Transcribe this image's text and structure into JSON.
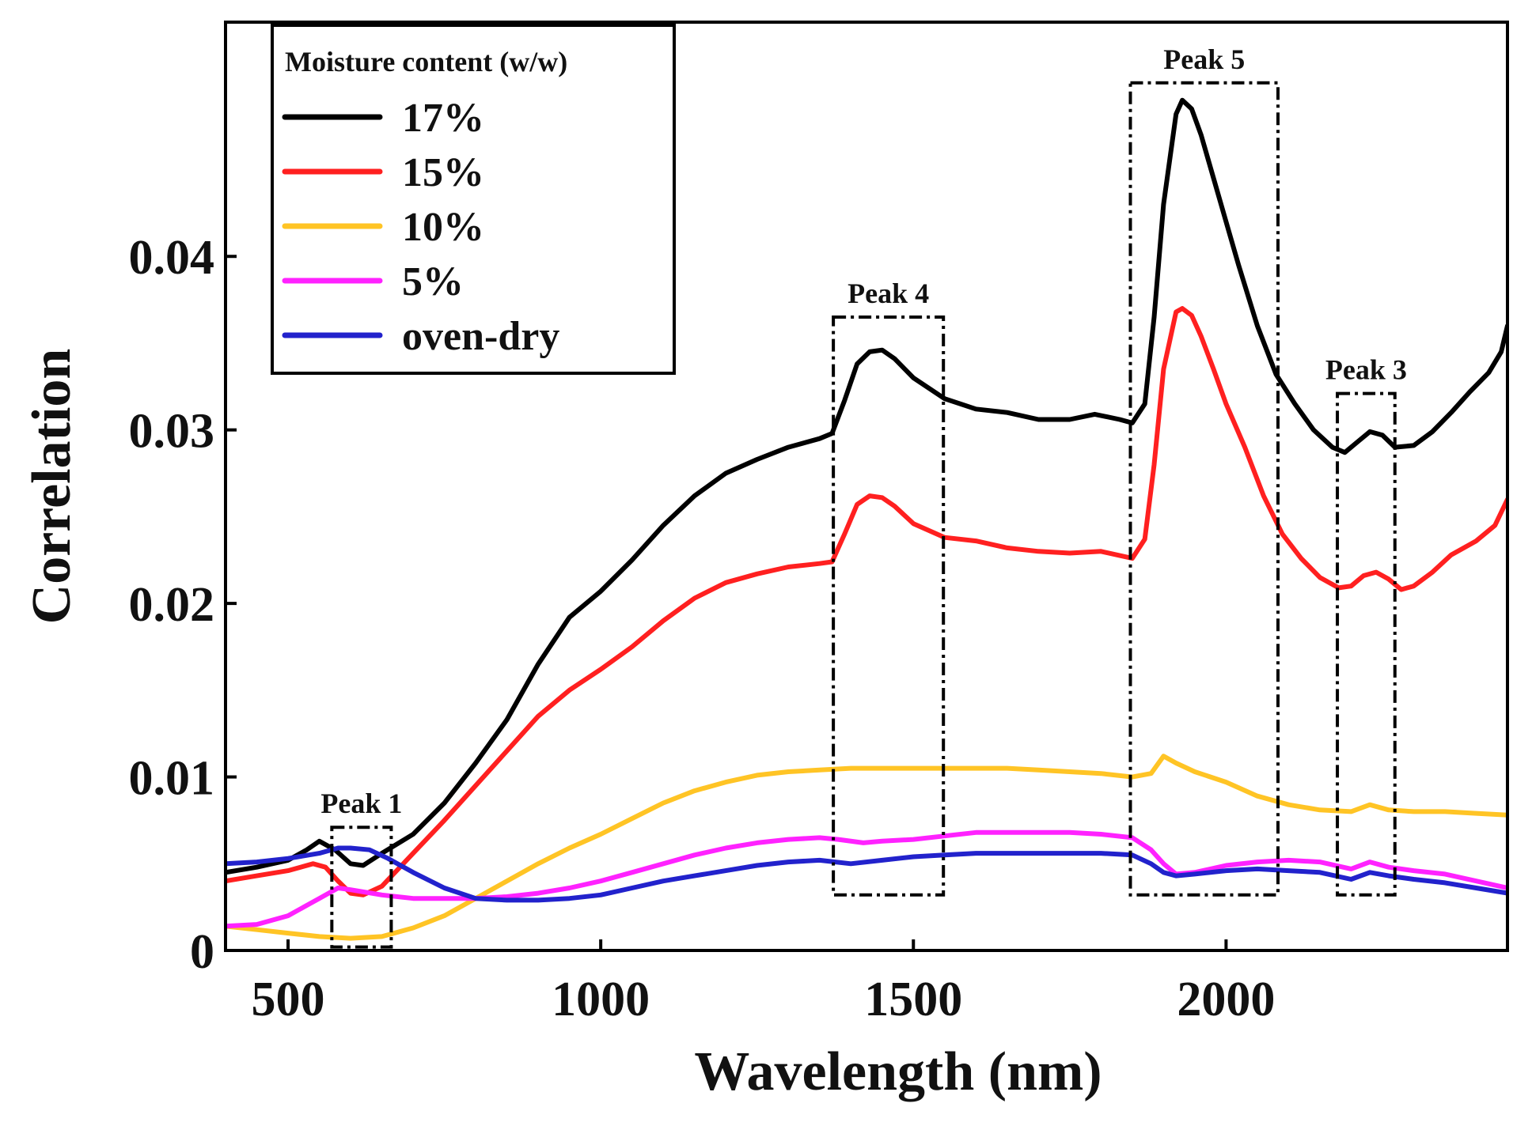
{
  "chart_data": {
    "type": "line",
    "title": "",
    "xlabel": "Wavelength (nm)",
    "ylabel": "Correlation",
    "xlim": [
      400,
      2450
    ],
    "ylim": [
      0,
      0.0535
    ],
    "xticks": [
      {
        "value": 500,
        "label": "500"
      },
      {
        "value": 1000,
        "label": "1000"
      },
      {
        "value": 1500,
        "label": "1500"
      },
      {
        "value": 2000,
        "label": "2000"
      }
    ],
    "yticks": [
      {
        "value": 0,
        "label": "0"
      },
      {
        "value": 0.01,
        "label": "0.01"
      },
      {
        "value": 0.02,
        "label": "0.02"
      },
      {
        "value": 0.03,
        "label": "0.03"
      },
      {
        "value": 0.04,
        "label": "0.04"
      }
    ],
    "legend": {
      "title": "Moisture content (w/w)",
      "position": "top-left"
    },
    "series": [
      {
        "name": "17%",
        "color": "#000000",
        "points": [
          [
            400,
            0.0045
          ],
          [
            450,
            0.0048
          ],
          [
            500,
            0.0052
          ],
          [
            530,
            0.0058
          ],
          [
            550,
            0.0063
          ],
          [
            575,
            0.0058
          ],
          [
            600,
            0.005
          ],
          [
            620,
            0.0049
          ],
          [
            650,
            0.0056
          ],
          [
            700,
            0.0067
          ],
          [
            750,
            0.0085
          ],
          [
            800,
            0.0108
          ],
          [
            850,
            0.0133
          ],
          [
            900,
            0.0165
          ],
          [
            950,
            0.0192
          ],
          [
            1000,
            0.0207
          ],
          [
            1050,
            0.0225
          ],
          [
            1100,
            0.0245
          ],
          [
            1150,
            0.0262
          ],
          [
            1200,
            0.0275
          ],
          [
            1250,
            0.0283
          ],
          [
            1300,
            0.029
          ],
          [
            1350,
            0.0295
          ],
          [
            1370,
            0.0298
          ],
          [
            1390,
            0.0317
          ],
          [
            1410,
            0.0338
          ],
          [
            1430,
            0.0345
          ],
          [
            1450,
            0.0346
          ],
          [
            1470,
            0.0341
          ],
          [
            1500,
            0.033
          ],
          [
            1550,
            0.0318
          ],
          [
            1600,
            0.0312
          ],
          [
            1650,
            0.031
          ],
          [
            1700,
            0.0306
          ],
          [
            1750,
            0.0306
          ],
          [
            1790,
            0.0309
          ],
          [
            1830,
            0.0306
          ],
          [
            1850,
            0.0304
          ],
          [
            1870,
            0.0315
          ],
          [
            1885,
            0.0365
          ],
          [
            1900,
            0.043
          ],
          [
            1920,
            0.0482
          ],
          [
            1930,
            0.049
          ],
          [
            1945,
            0.0485
          ],
          [
            1960,
            0.047
          ],
          [
            1980,
            0.0445
          ],
          [
            2000,
            0.042
          ],
          [
            2020,
            0.0395
          ],
          [
            2050,
            0.036
          ],
          [
            2080,
            0.0332
          ],
          [
            2110,
            0.0315
          ],
          [
            2140,
            0.03
          ],
          [
            2170,
            0.029
          ],
          [
            2190,
            0.0287
          ],
          [
            2210,
            0.0293
          ],
          [
            2230,
            0.0299
          ],
          [
            2250,
            0.0297
          ],
          [
            2270,
            0.029
          ],
          [
            2300,
            0.0291
          ],
          [
            2330,
            0.0299
          ],
          [
            2360,
            0.031
          ],
          [
            2390,
            0.0322
          ],
          [
            2420,
            0.0333
          ],
          [
            2440,
            0.0345
          ],
          [
            2450,
            0.036
          ]
        ]
      },
      {
        "name": "15%",
        "color": "#ff2020",
        "points": [
          [
            400,
            0.004
          ],
          [
            450,
            0.0043
          ],
          [
            500,
            0.0046
          ],
          [
            540,
            0.005
          ],
          [
            560,
            0.0048
          ],
          [
            580,
            0.004
          ],
          [
            600,
            0.0033
          ],
          [
            620,
            0.0032
          ],
          [
            650,
            0.0037
          ],
          [
            700,
            0.0056
          ],
          [
            750,
            0.0075
          ],
          [
            800,
            0.0095
          ],
          [
            850,
            0.0115
          ],
          [
            900,
            0.0135
          ],
          [
            950,
            0.015
          ],
          [
            1000,
            0.0162
          ],
          [
            1050,
            0.0175
          ],
          [
            1100,
            0.019
          ],
          [
            1150,
            0.0203
          ],
          [
            1200,
            0.0212
          ],
          [
            1250,
            0.0217
          ],
          [
            1300,
            0.0221
          ],
          [
            1350,
            0.0223
          ],
          [
            1370,
            0.0224
          ],
          [
            1390,
            0.024
          ],
          [
            1410,
            0.0257
          ],
          [
            1430,
            0.0262
          ],
          [
            1450,
            0.0261
          ],
          [
            1470,
            0.0256
          ],
          [
            1500,
            0.0246
          ],
          [
            1550,
            0.0238
          ],
          [
            1600,
            0.0236
          ],
          [
            1650,
            0.0232
          ],
          [
            1700,
            0.023
          ],
          [
            1750,
            0.0229
          ],
          [
            1800,
            0.023
          ],
          [
            1850,
            0.0226
          ],
          [
            1870,
            0.0237
          ],
          [
            1885,
            0.028
          ],
          [
            1900,
            0.0335
          ],
          [
            1920,
            0.0368
          ],
          [
            1930,
            0.037
          ],
          [
            1945,
            0.0366
          ],
          [
            1960,
            0.0354
          ],
          [
            1980,
            0.0335
          ],
          [
            2000,
            0.0315
          ],
          [
            2030,
            0.029
          ],
          [
            2060,
            0.0262
          ],
          [
            2090,
            0.024
          ],
          [
            2120,
            0.0226
          ],
          [
            2150,
            0.0215
          ],
          [
            2180,
            0.0209
          ],
          [
            2200,
            0.021
          ],
          [
            2220,
            0.0216
          ],
          [
            2240,
            0.0218
          ],
          [
            2260,
            0.0214
          ],
          [
            2280,
            0.0208
          ],
          [
            2300,
            0.021
          ],
          [
            2330,
            0.0218
          ],
          [
            2360,
            0.0228
          ],
          [
            2400,
            0.0236
          ],
          [
            2430,
            0.0245
          ],
          [
            2450,
            0.026
          ]
        ]
      },
      {
        "name": "10%",
        "color": "#ffc425",
        "points": [
          [
            400,
            0.0014
          ],
          [
            450,
            0.0012
          ],
          [
            500,
            0.001
          ],
          [
            550,
            0.0008
          ],
          [
            600,
            0.0007
          ],
          [
            650,
            0.0008
          ],
          [
            700,
            0.0013
          ],
          [
            750,
            0.002
          ],
          [
            800,
            0.003
          ],
          [
            850,
            0.004
          ],
          [
            900,
            0.005
          ],
          [
            950,
            0.0059
          ],
          [
            1000,
            0.0067
          ],
          [
            1050,
            0.0076
          ],
          [
            1100,
            0.0085
          ],
          [
            1150,
            0.0092
          ],
          [
            1200,
            0.0097
          ],
          [
            1250,
            0.0101
          ],
          [
            1300,
            0.0103
          ],
          [
            1350,
            0.0104
          ],
          [
            1400,
            0.0105
          ],
          [
            1450,
            0.0105
          ],
          [
            1500,
            0.0105
          ],
          [
            1550,
            0.0105
          ],
          [
            1600,
            0.0105
          ],
          [
            1650,
            0.0105
          ],
          [
            1700,
            0.0104
          ],
          [
            1750,
            0.0103
          ],
          [
            1800,
            0.0102
          ],
          [
            1850,
            0.01
          ],
          [
            1880,
            0.0102
          ],
          [
            1900,
            0.0112
          ],
          [
            1920,
            0.0108
          ],
          [
            1950,
            0.0103
          ],
          [
            2000,
            0.0097
          ],
          [
            2050,
            0.0089
          ],
          [
            2100,
            0.0084
          ],
          [
            2150,
            0.0081
          ],
          [
            2200,
            0.008
          ],
          [
            2230,
            0.0084
          ],
          [
            2260,
            0.0081
          ],
          [
            2300,
            0.008
          ],
          [
            2350,
            0.008
          ],
          [
            2400,
            0.0079
          ],
          [
            2450,
            0.0078
          ]
        ]
      },
      {
        "name": "5%",
        "color": "#ff22ff",
        "points": [
          [
            400,
            0.0014
          ],
          [
            450,
            0.0015
          ],
          [
            500,
            0.002
          ],
          [
            550,
            0.003
          ],
          [
            580,
            0.0036
          ],
          [
            600,
            0.0035
          ],
          [
            650,
            0.0032
          ],
          [
            700,
            0.003
          ],
          [
            750,
            0.003
          ],
          [
            800,
            0.003
          ],
          [
            850,
            0.0031
          ],
          [
            900,
            0.0033
          ],
          [
            950,
            0.0036
          ],
          [
            1000,
            0.004
          ],
          [
            1050,
            0.0045
          ],
          [
            1100,
            0.005
          ],
          [
            1150,
            0.0055
          ],
          [
            1200,
            0.0059
          ],
          [
            1250,
            0.0062
          ],
          [
            1300,
            0.0064
          ],
          [
            1350,
            0.0065
          ],
          [
            1380,
            0.0064
          ],
          [
            1420,
            0.0062
          ],
          [
            1450,
            0.0063
          ],
          [
            1500,
            0.0064
          ],
          [
            1550,
            0.0066
          ],
          [
            1600,
            0.0068
          ],
          [
            1650,
            0.0068
          ],
          [
            1700,
            0.0068
          ],
          [
            1750,
            0.0068
          ],
          [
            1800,
            0.0067
          ],
          [
            1850,
            0.0065
          ],
          [
            1880,
            0.0058
          ],
          [
            1900,
            0.005
          ],
          [
            1920,
            0.0044
          ],
          [
            1950,
            0.0045
          ],
          [
            2000,
            0.0049
          ],
          [
            2050,
            0.0051
          ],
          [
            2100,
            0.0052
          ],
          [
            2150,
            0.0051
          ],
          [
            2200,
            0.0047
          ],
          [
            2230,
            0.0051
          ],
          [
            2260,
            0.0048
          ],
          [
            2300,
            0.0046
          ],
          [
            2350,
            0.0044
          ],
          [
            2400,
            0.004
          ],
          [
            2450,
            0.0036
          ]
        ]
      },
      {
        "name": "oven-dry",
        "color": "#2222cc",
        "points": [
          [
            400,
            0.005
          ],
          [
            450,
            0.0051
          ],
          [
            500,
            0.0053
          ],
          [
            550,
            0.0056
          ],
          [
            580,
            0.0059
          ],
          [
            600,
            0.0059
          ],
          [
            630,
            0.0058
          ],
          [
            660,
            0.0053
          ],
          [
            700,
            0.0045
          ],
          [
            750,
            0.0036
          ],
          [
            800,
            0.003
          ],
          [
            850,
            0.0029
          ],
          [
            900,
            0.0029
          ],
          [
            950,
            0.003
          ],
          [
            1000,
            0.0032
          ],
          [
            1050,
            0.0036
          ],
          [
            1100,
            0.004
          ],
          [
            1150,
            0.0043
          ],
          [
            1200,
            0.0046
          ],
          [
            1250,
            0.0049
          ],
          [
            1300,
            0.0051
          ],
          [
            1350,
            0.0052
          ],
          [
            1400,
            0.005
          ],
          [
            1450,
            0.0052
          ],
          [
            1500,
            0.0054
          ],
          [
            1550,
            0.0055
          ],
          [
            1600,
            0.0056
          ],
          [
            1650,
            0.0056
          ],
          [
            1700,
            0.0056
          ],
          [
            1750,
            0.0056
          ],
          [
            1800,
            0.0056
          ],
          [
            1850,
            0.0055
          ],
          [
            1880,
            0.005
          ],
          [
            1900,
            0.0045
          ],
          [
            1920,
            0.0043
          ],
          [
            1950,
            0.0044
          ],
          [
            2000,
            0.0046
          ],
          [
            2050,
            0.0047
          ],
          [
            2100,
            0.0046
          ],
          [
            2150,
            0.0045
          ],
          [
            2200,
            0.0041
          ],
          [
            2230,
            0.0045
          ],
          [
            2260,
            0.0043
          ],
          [
            2300,
            0.0041
          ],
          [
            2350,
            0.0039
          ],
          [
            2400,
            0.0036
          ],
          [
            2450,
            0.0033
          ]
        ]
      }
    ],
    "annotations": [
      {
        "name": "peak-1",
        "label": "Peak 1",
        "x_range": [
          570,
          665
        ],
        "y_range": [
          0.0002,
          0.0071
        ]
      },
      {
        "name": "peak-4",
        "label": "Peak 4",
        "x_range": [
          1372,
          1548
        ],
        "y_range": [
          0.0032,
          0.0365
        ]
      },
      {
        "name": "peak-5",
        "label": "Peak 5",
        "x_range": [
          1847,
          2083
        ],
        "y_range": [
          0.0032,
          0.05
        ]
      },
      {
        "name": "peak-3",
        "label": "Peak 3",
        "x_range": [
          2178,
          2270
        ],
        "y_range": [
          0.0032,
          0.0321
        ]
      }
    ]
  }
}
